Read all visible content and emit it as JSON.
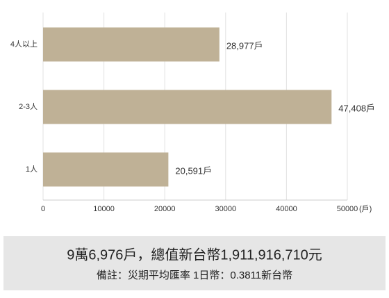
{
  "chart_data": {
    "type": "bar",
    "orientation": "horizontal",
    "categories": [
      "4人以上",
      "2-3人",
      "1人"
    ],
    "values": [
      28977,
      47408,
      20591
    ],
    "value_labels": [
      "28,977戶",
      "47,408戶",
      "20,591戶"
    ],
    "color": "#bfb196",
    "xlim": [
      0,
      50000
    ],
    "xticks": [
      0,
      10000,
      20000,
      30000,
      40000,
      50000
    ],
    "xlabel": "(戶)",
    "grid": true
  },
  "footer": {
    "line1": "9萬6,976戶，總值新台幣1,911,916,710元",
    "line2": "備註：災期平均匯率 1日幣：0.3811新台幣"
  }
}
